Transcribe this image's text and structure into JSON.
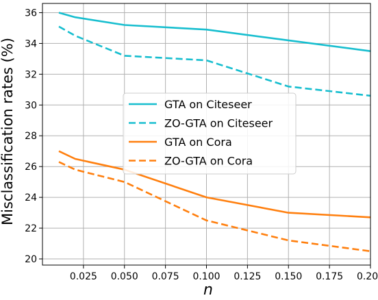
{
  "chart_data": {
    "type": "line",
    "title": "",
    "xlabel": "n",
    "ylabel": "Misclassification rates (%)",
    "xlim": [
      0.0,
      0.2
    ],
    "ylim": [
      19.6,
      36.6
    ],
    "xticks": [
      0.025,
      0.05,
      0.075,
      0.1,
      0.125,
      0.15,
      0.175,
      0.2
    ],
    "xtick_labels": [
      "0.025",
      "0.050",
      "0.075",
      "0.100",
      "0.125",
      "0.150",
      "0.175",
      "0.200"
    ],
    "yticks": [
      20,
      22,
      24,
      26,
      28,
      30,
      32,
      34,
      36
    ],
    "ytick_labels": [
      "20",
      "22",
      "24",
      "26",
      "28",
      "30",
      "32",
      "34",
      "36"
    ],
    "grid": true,
    "legend_position": "center",
    "series": [
      {
        "name": "GTA on Citeseer",
        "color": "#17becf",
        "style": "solid",
        "x": [
          0.01,
          0.02,
          0.05,
          0.1,
          0.15,
          0.2
        ],
        "y": [
          36.0,
          35.7,
          35.2,
          34.9,
          34.2,
          33.5
        ]
      },
      {
        "name": "ZO-GTA on Citeseer",
        "color": "#17becf",
        "style": "dashed",
        "x": [
          0.01,
          0.02,
          0.05,
          0.1,
          0.15,
          0.2
        ],
        "y": [
          35.1,
          34.5,
          33.2,
          32.9,
          31.2,
          30.6
        ]
      },
      {
        "name": "GTA on Cora",
        "color": "#ff7f0e",
        "style": "solid",
        "x": [
          0.01,
          0.02,
          0.05,
          0.1,
          0.15,
          0.2
        ],
        "y": [
          27.0,
          26.5,
          25.8,
          24.0,
          23.0,
          22.7
        ]
      },
      {
        "name": "ZO-GTA on Cora",
        "color": "#ff7f0e",
        "style": "dashed",
        "x": [
          0.01,
          0.02,
          0.05,
          0.1,
          0.15,
          0.2
        ],
        "y": [
          26.3,
          25.8,
          25.0,
          22.5,
          21.2,
          20.5
        ]
      }
    ]
  }
}
